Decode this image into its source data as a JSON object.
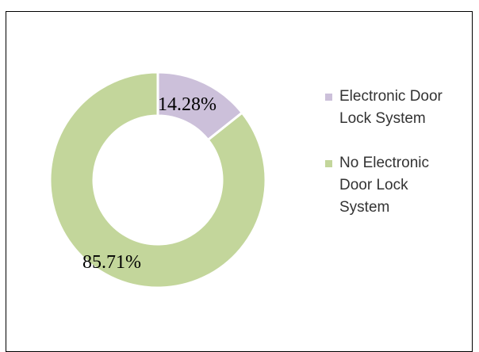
{
  "chart_data": {
    "type": "pie",
    "variant": "donut",
    "categories": [
      "Electronic Door Lock System",
      "No Electronic Door Lock System"
    ],
    "values": [
      14.28,
      85.71
    ],
    "data_labels": [
      "14.28%",
      "85.71%"
    ],
    "colors": [
      "#ccc0da",
      "#c3d69b"
    ],
    "legend": {
      "placement": "right",
      "items": [
        {
          "lines": [
            "Electronic Door",
            "Lock System"
          ],
          "color": "#ccc0da"
        },
        {
          "lines": [
            "No Electronic",
            "Door Lock",
            "System"
          ],
          "color": "#c3d69b"
        }
      ]
    }
  }
}
